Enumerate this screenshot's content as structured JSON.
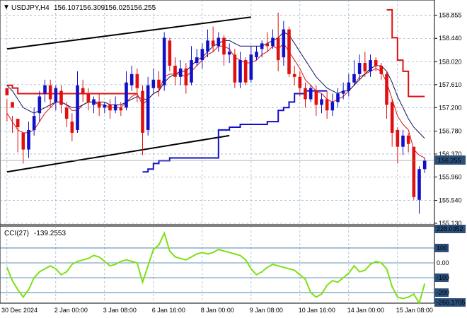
{
  "header": {
    "symbol": "USDJPY,H4",
    "open": "156.107",
    "high": "156.309",
    "low": "156.025",
    "close": "156.255"
  },
  "price_axis": {
    "ticks": [
      "158.855",
      "158.440",
      "158.020",
      "157.610",
      "157.200",
      "156.780",
      "156.370",
      "155.960",
      "155.540",
      "155.130"
    ],
    "current": "156.255"
  },
  "cci": {
    "label": "CCI(27)",
    "value": "-139.2553",
    "ticks": [
      "228.0352",
      "100",
      "0.00",
      "-100",
      "-200",
      "-266.1705"
    ]
  },
  "time_axis": {
    "labels": [
      "30 Dec 2024",
      "2 Jan 00:00",
      "3 Jan 08:00",
      "6 Jan 16:00",
      "8 Jan 00:00",
      "9 Jan 08:00",
      "10 Jan 16:00",
      "14 Jan 00:00",
      "15 Jan 08:00"
    ]
  },
  "colors": {
    "bull": "#1010c8",
    "bear": "#e01010",
    "ma_red": "#e01010",
    "ma_dark": "#101060",
    "stop_red": "#e01010",
    "stop_blue": "#1010c8",
    "channel": "#000000",
    "cci_line": "#7fe014",
    "grid": "#7f9fbf",
    "current_box": "#2b4f7a"
  },
  "chart_data": {
    "type": "candlestick",
    "symbol": "USDJPY",
    "timeframe": "H4",
    "ylim": [
      155.13,
      159.05
    ],
    "candles": [
      [
        157.55,
        157.42,
        157.35,
        156.95
      ],
      [
        157.3,
        157.2,
        157.05,
        156.75
      ],
      [
        157.0,
        156.85,
        156.95,
        156.4
      ],
      [
        156.75,
        156.45,
        156.7,
        156.2
      ],
      [
        156.45,
        156.8,
        156.95,
        156.3
      ],
      [
        156.8,
        157.05,
        157.2,
        156.7
      ],
      [
        157.1,
        157.4,
        157.5,
        156.95
      ],
      [
        157.45,
        157.6,
        157.7,
        157.3
      ],
      [
        157.6,
        157.35,
        157.7,
        157.2
      ],
      [
        157.3,
        157.55,
        157.6,
        157.15
      ],
      [
        157.5,
        157.25,
        157.6,
        157.1
      ],
      [
        157.2,
        157.0,
        157.3,
        156.85
      ],
      [
        156.95,
        156.75,
        157.1,
        156.6
      ],
      [
        156.8,
        157.6,
        157.85,
        156.75
      ],
      [
        157.55,
        157.45,
        157.7,
        157.3
      ],
      [
        157.45,
        157.3,
        157.55,
        157.15
      ],
      [
        157.25,
        157.35,
        157.4,
        157.1
      ],
      [
        157.3,
        157.2,
        157.45,
        157.05
      ],
      [
        157.2,
        157.25,
        157.3,
        157.1
      ],
      [
        157.25,
        157.15,
        157.35,
        157.0
      ],
      [
        157.15,
        157.25,
        157.4,
        157.1
      ],
      [
        157.2,
        157.15,
        157.3,
        157.05
      ],
      [
        157.2,
        157.65,
        157.85,
        157.15
      ],
      [
        157.6,
        157.8,
        157.95,
        157.5
      ],
      [
        157.8,
        157.55,
        157.9,
        157.3
      ],
      [
        157.5,
        156.75,
        157.6,
        156.35
      ],
      [
        156.8,
        157.6,
        157.75,
        156.7
      ],
      [
        157.55,
        157.7,
        157.9,
        157.45
      ],
      [
        157.7,
        157.55,
        157.85,
        157.4
      ],
      [
        157.6,
        158.45,
        158.55,
        157.5
      ],
      [
        158.4,
        157.95,
        158.45,
        157.85
      ],
      [
        157.95,
        157.75,
        158.1,
        157.6
      ],
      [
        157.75,
        157.9,
        158.05,
        157.6
      ],
      [
        157.9,
        157.6,
        158.0,
        157.45
      ],
      [
        157.65,
        158.05,
        158.3,
        157.6
      ],
      [
        158.0,
        158.1,
        158.25,
        157.95
      ],
      [
        158.05,
        158.25,
        158.35,
        157.9
      ],
      [
        158.2,
        158.4,
        158.6,
        158.1
      ],
      [
        158.4,
        158.3,
        158.65,
        158.2
      ],
      [
        158.3,
        158.45,
        158.55,
        158.2
      ],
      [
        158.45,
        158.15,
        158.5,
        157.95
      ],
      [
        158.15,
        158.2,
        158.35,
        158.0
      ],
      [
        158.15,
        157.65,
        158.25,
        157.55
      ],
      [
        157.65,
        158.05,
        158.2,
        157.55
      ],
      [
        158.05,
        157.65,
        158.1,
        157.6
      ],
      [
        157.7,
        158.15,
        158.3,
        157.65
      ],
      [
        158.1,
        158.2,
        158.3,
        158.05
      ],
      [
        158.25,
        158.35,
        158.4,
        158.1
      ],
      [
        158.35,
        158.3,
        158.55,
        158.2
      ],
      [
        158.3,
        158.45,
        158.6,
        158.25
      ],
      [
        158.45,
        158.05,
        158.9,
        157.85
      ],
      [
        158.1,
        158.6,
        158.75,
        157.95
      ],
      [
        158.6,
        157.8,
        158.65,
        157.75
      ],
      [
        157.8,
        157.75,
        157.95,
        157.6
      ],
      [
        157.75,
        157.55,
        157.85,
        157.4
      ],
      [
        157.55,
        157.35,
        157.65,
        157.2
      ],
      [
        157.35,
        157.55,
        157.6,
        157.3
      ],
      [
        157.5,
        157.25,
        157.6,
        157.05
      ],
      [
        157.25,
        157.35,
        157.45,
        157.1
      ],
      [
        157.35,
        157.15,
        157.5,
        157.0
      ],
      [
        157.15,
        157.3,
        157.45,
        157.05
      ],
      [
        157.3,
        157.45,
        157.55,
        157.2
      ],
      [
        157.45,
        157.5,
        157.65,
        157.35
      ],
      [
        157.5,
        157.65,
        157.8,
        157.4
      ],
      [
        157.65,
        157.8,
        158.05,
        157.6
      ],
      [
        157.8,
        158.0,
        158.15,
        157.7
      ],
      [
        158.0,
        157.85,
        158.2,
        157.75
      ],
      [
        157.85,
        158.05,
        158.15,
        157.75
      ],
      [
        158.05,
        157.95,
        158.1,
        157.85
      ],
      [
        157.95,
        157.8,
        158.0,
        157.7
      ],
      [
        157.8,
        157.25,
        157.85,
        157.0
      ],
      [
        157.3,
        156.75,
        157.35,
        156.5
      ],
      [
        156.8,
        156.5,
        156.85,
        156.2
      ],
      [
        156.5,
        156.7,
        156.8,
        156.35
      ],
      [
        156.7,
        156.55,
        156.75,
        156.4
      ],
      [
        156.5,
        155.6,
        156.4,
        155.55
      ],
      [
        155.55,
        156.1,
        156.15,
        155.3
      ],
      [
        156.1,
        156.25,
        156.3,
        156.03
      ]
    ],
    "series": [
      {
        "name": "red_ma",
        "values": [
          157.1,
          156.95,
          156.8,
          156.75,
          156.75,
          156.8,
          156.95,
          157.1,
          157.2,
          157.3,
          157.3,
          157.25,
          157.15,
          157.15,
          157.25,
          157.3,
          157.3,
          157.25,
          157.25,
          157.2,
          157.2,
          157.2,
          157.3,
          157.4,
          157.45,
          157.25,
          157.35,
          157.45,
          157.5,
          157.75,
          157.8,
          157.8,
          157.8,
          157.75,
          157.85,
          157.95,
          158.05,
          158.15,
          158.2,
          158.3,
          158.3,
          158.25,
          158.1,
          158.05,
          158.0,
          158.0,
          158.05,
          158.15,
          158.2,
          158.3,
          158.25,
          158.35,
          158.2,
          158.05,
          157.9,
          157.7,
          157.6,
          157.5,
          157.45,
          157.35,
          157.3,
          157.35,
          157.4,
          157.5,
          157.6,
          157.75,
          157.8,
          157.85,
          157.9,
          157.85,
          157.65,
          157.35,
          157.05,
          156.9,
          156.8,
          156.45,
          156.35,
          156.3
        ]
      },
      {
        "name": "dark_ma",
        "values": [
          157.6,
          157.5,
          157.35,
          157.2,
          157.15,
          157.1,
          157.15,
          157.2,
          157.25,
          157.3,
          157.3,
          157.25,
          157.2,
          157.2,
          157.25,
          157.3,
          157.3,
          157.3,
          157.3,
          157.25,
          157.25,
          157.25,
          157.3,
          157.35,
          157.4,
          157.35,
          157.35,
          157.45,
          157.5,
          157.65,
          157.75,
          157.8,
          157.85,
          157.85,
          157.95,
          158.05,
          158.1,
          158.2,
          158.3,
          158.35,
          158.4,
          158.4,
          158.35,
          158.3,
          158.3,
          158.3,
          158.3,
          158.3,
          158.35,
          158.4,
          158.45,
          158.55,
          158.5,
          158.35,
          158.2,
          158.05,
          157.9,
          157.75,
          157.65,
          157.55,
          157.5,
          157.45,
          157.5,
          157.5,
          157.6,
          157.7,
          157.8,
          157.9,
          157.95,
          157.95,
          157.85,
          157.65,
          157.4,
          157.2,
          157.0,
          156.85,
          156.75,
          156.65
        ]
      },
      {
        "name": "stop_red",
        "values": [
          157.6,
          157.55,
          157.45,
          157.45,
          157.45,
          157.45,
          157.45,
          157.45,
          157.45,
          157.45,
          157.45,
          157.45,
          157.45,
          157.45,
          157.45,
          157.45,
          157.45,
          157.45,
          157.45,
          157.45,
          157.45,
          157.45,
          157.45,
          157.45,
          157.45,
          null,
          null,
          null,
          null,
          null,
          null,
          null,
          null,
          null,
          null,
          null,
          null,
          null,
          null,
          null,
          null,
          null,
          null,
          null,
          null,
          null,
          null,
          null,
          null,
          null,
          null,
          null,
          null,
          null,
          null,
          null,
          null,
          null,
          null,
          null,
          null,
          null,
          null,
          null,
          null,
          null,
          null,
          null,
          null,
          null,
          158.95,
          158.45,
          158.05,
          157.85,
          157.4,
          157.4,
          157.4,
          157.4
        ]
      },
      {
        "name": "stop_blue",
        "values": [
          null,
          null,
          null,
          null,
          null,
          null,
          null,
          null,
          null,
          null,
          null,
          null,
          null,
          null,
          null,
          null,
          null,
          null,
          null,
          null,
          null,
          null,
          null,
          null,
          null,
          156.05,
          156.1,
          156.2,
          156.25,
          156.25,
          156.3,
          156.3,
          156.3,
          156.3,
          156.3,
          156.3,
          156.3,
          156.3,
          156.3,
          156.8,
          156.8,
          156.85,
          156.85,
          156.9,
          156.9,
          156.9,
          156.9,
          156.9,
          156.95,
          156.95,
          157.15,
          157.2,
          157.3,
          157.45,
          157.45,
          157.5,
          157.5,
          157.5,
          157.5,
          157.5,
          null,
          null,
          null,
          null,
          null,
          null,
          null,
          null,
          null,
          null,
          null,
          null,
          null,
          null,
          null,
          null,
          null,
          null
        ]
      }
    ],
    "channel_upper": [
      [
        0,
        158.25
      ],
      [
        45,
        158.82
      ]
    ],
    "channel_lower": [
      [
        0,
        156.05
      ],
      [
        41,
        156.7
      ]
    ],
    "cci_values": [
      -30,
      -120,
      -180,
      -230,
      -180,
      -100,
      -60,
      -40,
      -20,
      -40,
      -80,
      -60,
      -10,
      10,
      20,
      30,
      50,
      40,
      10,
      -20,
      -10,
      10,
      20,
      10,
      0,
      -130,
      -20,
      90,
      120,
      200,
      80,
      40,
      30,
      20,
      40,
      60,
      70,
      60,
      70,
      90,
      80,
      70,
      60,
      50,
      20,
      -40,
      -80,
      -60,
      -30,
      -10,
      -20,
      -30,
      -40,
      -50,
      -80,
      -110,
      -200,
      -230,
      -210,
      -150,
      -120,
      -130,
      -100,
      -70,
      -20,
      -60,
      -50,
      -10,
      10,
      0,
      -40,
      -160,
      -230,
      -240,
      -230,
      -210,
      -270,
      -140
    ],
    "cci_ylim": [
      -266.1705,
      228.0352
    ]
  }
}
